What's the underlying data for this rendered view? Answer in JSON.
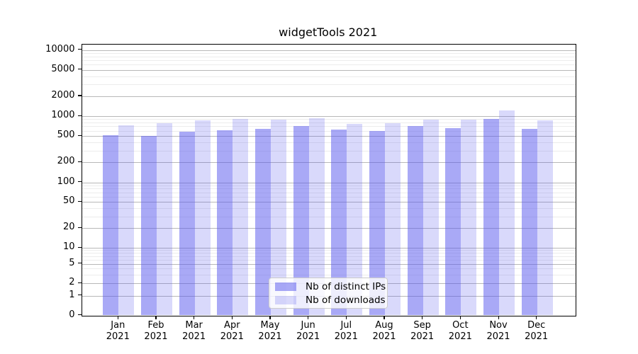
{
  "title": "widgetTools 2021",
  "chart_data": {
    "type": "bar",
    "title": "widgetTools 2021",
    "categories": [
      "Jan",
      "Feb",
      "Mar",
      "Apr",
      "May",
      "Jun",
      "Jul",
      "Aug",
      "Sep",
      "Oct",
      "Nov",
      "Dec"
    ],
    "year_label": "2021",
    "series": [
      {
        "name": "Nb of distinct IPs",
        "color": "rgba(84,84,238,0.5)",
        "values": [
          515,
          500,
          580,
          610,
          640,
          715,
          630,
          600,
          705,
          650,
          900,
          645
        ]
      },
      {
        "name": "Nb of downloads",
        "color": "rgba(84,84,238,0.22)",
        "values": [
          720,
          790,
          855,
          905,
          880,
          940,
          760,
          790,
          895,
          875,
          1230,
          855
        ]
      }
    ],
    "yticks": [
      0,
      1,
      2,
      5,
      10,
      20,
      50,
      100,
      200,
      500,
      1000,
      2000,
      5000,
      10000
    ],
    "yscale": "symlog",
    "ylim": [
      0,
      12000
    ],
    "grid": "major+minor horizontal",
    "legend_position": "lower center"
  }
}
